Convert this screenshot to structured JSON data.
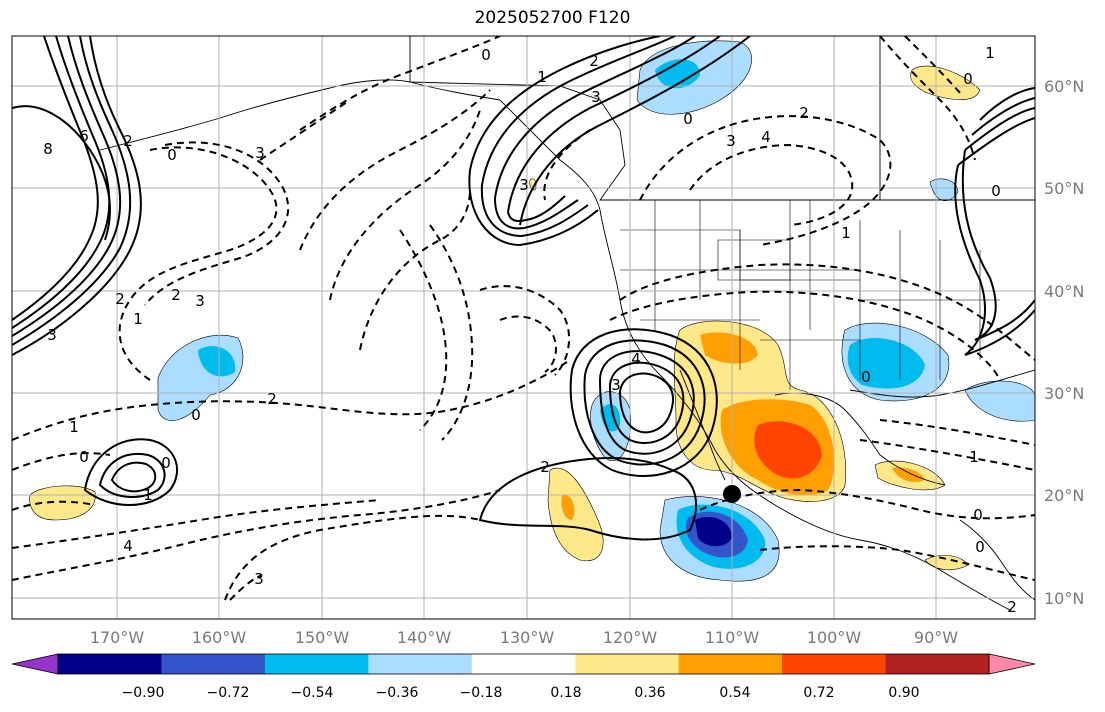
{
  "title": "2025052700 F120",
  "longitude_labels": [
    "170°W",
    "160°W",
    "150°W",
    "140°W",
    "130°W",
    "120°W",
    "110°W",
    "100°W",
    "90°W"
  ],
  "latitude_labels": [
    "60°N",
    "50°N",
    "40°N",
    "30°N",
    "20°N",
    "10°N"
  ],
  "colorbar": {
    "ticks": [
      "−0.90",
      "−0.72",
      "−0.54",
      "−0.36",
      "−0.18",
      "0.18",
      "0.36",
      "0.54",
      "0.72",
      "0.90"
    ],
    "colors": [
      "#9933cc",
      "#000088",
      "#3355cc",
      "#00bbee",
      "#aaddff",
      "#ffffff",
      "#ffe88a",
      "#ffa000",
      "#ff4400",
      "#b22222",
      "#ff88aa"
    ]
  },
  "contour_labels": [
    "0",
    "2",
    "3",
    "1",
    "0",
    "3",
    "4",
    "2",
    "3",
    "8",
    "6",
    "2",
    "0",
    "3",
    "2",
    "1",
    "3",
    "2",
    "0",
    "2",
    "1",
    "0",
    "1",
    "0",
    "4",
    "3",
    "3",
    "4",
    "2",
    "3",
    "0",
    "0",
    "0",
    "1",
    "1",
    "0",
    "0",
    "2",
    "1"
  ],
  "marker": "storm-center-dot"
}
